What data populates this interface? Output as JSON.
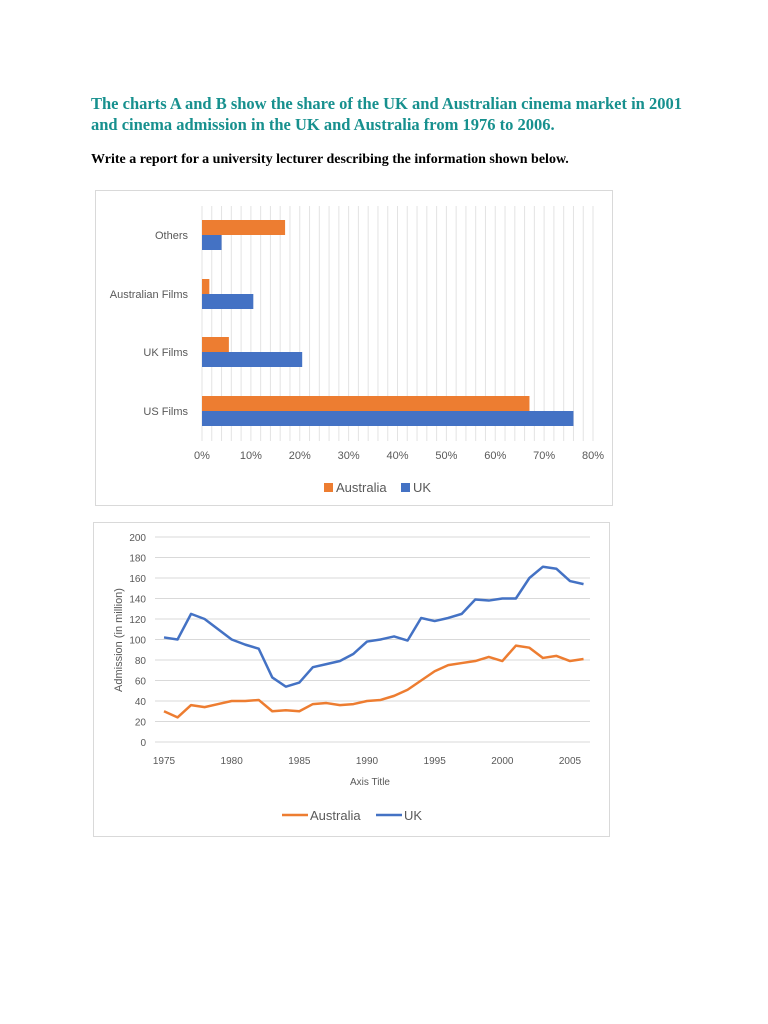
{
  "heading": "The charts A and B show the share of the UK and Australian cinema market in 2001 and cinema admission in the UK and Australia from 1976 to 2006.",
  "instruction": "Write a report for a university lecturer describing the information shown below.",
  "colors": {
    "australia": "#ed7d31",
    "uk": "#4472c4",
    "heading": "#17908e"
  },
  "chart_data": [
    {
      "type": "bar",
      "orientation": "horizontal",
      "categories": [
        "Others",
        "Australian Films",
        "UK Films",
        "US Films"
      ],
      "series": [
        {
          "name": "Australia",
          "values": [
            17,
            1.5,
            5.5,
            67
          ]
        },
        {
          "name": "UK",
          "values": [
            4,
            10.5,
            20.5,
            76
          ]
        }
      ],
      "xlim": [
        0,
        80
      ],
      "xticks": [
        "0%",
        "10%",
        "20%",
        "30%",
        "40%",
        "50%",
        "60%",
        "70%",
        "80%"
      ],
      "grid": true,
      "legend": "bottom"
    },
    {
      "type": "line",
      "x": [
        1975,
        1976,
        1977,
        1978,
        1979,
        1980,
        1981,
        1982,
        1983,
        1984,
        1985,
        1986,
        1987,
        1988,
        1989,
        1990,
        1991,
        1992,
        1993,
        1994,
        1995,
        1996,
        1997,
        1998,
        1999,
        2000,
        2001,
        2002,
        2003,
        2004,
        2005,
        2006
      ],
      "series": [
        {
          "name": "Australia",
          "values": [
            30,
            24,
            36,
            34,
            37,
            40,
            40,
            41,
            30,
            31,
            30,
            37,
            38,
            36,
            37,
            40,
            41,
            45,
            51,
            60,
            69,
            75,
            77,
            79,
            83,
            79,
            94,
            92,
            82,
            84,
            79,
            81
          ]
        },
        {
          "name": "UK",
          "values": [
            102,
            100,
            125,
            120,
            110,
            100,
            95,
            91,
            63,
            54,
            58,
            73,
            76,
            79,
            86,
            98,
            100,
            103,
            99,
            121,
            118,
            121,
            125,
            139,
            138,
            140,
            140,
            160,
            171,
            169,
            157,
            154
          ]
        }
      ],
      "xlabel": "Axis Title",
      "ylabel": "Admission (in million)",
      "ylim": [
        0,
        200
      ],
      "yticks": [
        "0",
        "20",
        "40",
        "60",
        "80",
        "100",
        "120",
        "140",
        "160",
        "180",
        "200"
      ],
      "xticks": [
        "1975",
        "1980",
        "1985",
        "1990",
        "1995",
        "2000",
        "2005"
      ],
      "grid": true,
      "legend": "bottom"
    }
  ]
}
